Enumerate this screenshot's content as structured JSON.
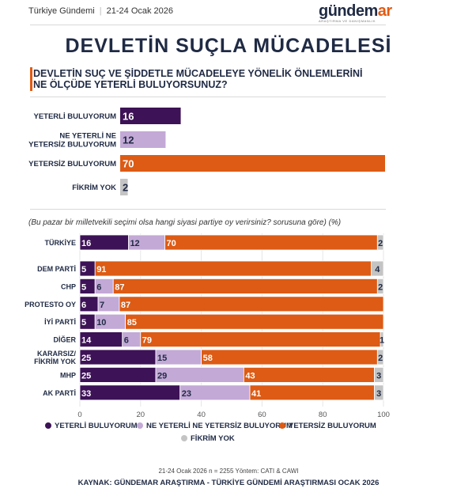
{
  "header": {
    "source_name": "Türkiye Gündemi",
    "date": "21-24 Ocak 2026"
  },
  "logo": {
    "main_left": "gündem",
    "main_accent": "ar",
    "tagline": "ARAŞTIRMA VE DANIŞMANLIK"
  },
  "title": "DEVLETİN SUÇLA MÜCADELESİ",
  "question": "DEVLETİN SUÇ VE ŞİDDETLE MÜCADELEYE YÖNELİK ÖNLEMLERİNİ NE ÖLÇÜDE YETERLİ BULUYORSUNUZ?",
  "note": "(Bu pazar bir milletvekili seçimi olsa hangi siyasi partiye oy verirsiniz? sorusuna göre) (%)",
  "colors": {
    "yeterli": "#3d1256",
    "ne_ne": "#c3a9d6",
    "yetersiz": "#dd5b14",
    "fikrim_yok": "#c4c4c4",
    "dark_text": "#1f2a44"
  },
  "chart_data": [
    {
      "type": "bar",
      "orientation": "horizontal",
      "categories": [
        "YETERLİ BULUYORUM",
        "NE YETERLİ NE YETERSİZ BULUYORUM",
        "YETERSİZ BULUYORUM",
        "FİKRİM YOK"
      ],
      "values": [
        16,
        12,
        70,
        2
      ],
      "colors": [
        "#3d1256",
        "#c3a9d6",
        "#dd5b14",
        "#c4c4c4"
      ]
    },
    {
      "type": "bar",
      "orientation": "horizontal",
      "stacked": true,
      "categories": [
        "TÜRKİYE",
        "DEM PARTİ",
        "CHP",
        "PROTESTO OY",
        "İYİ PARTİ",
        "DİĞER",
        "KARARSIZ/ FİKRİM YOK",
        "MHP",
        "AK PARTİ"
      ],
      "series": [
        {
          "name": "YETERLİ BULUYORUM",
          "color": "#3d1256",
          "values": [
            16,
            5,
            5,
            6,
            5,
            14,
            25,
            25,
            33
          ]
        },
        {
          "name": "NE YETERLİ NE YETERSİZ BULUYORUM",
          "color": "#c3a9d6",
          "values": [
            12,
            0,
            6,
            7,
            10,
            6,
            15,
            29,
            23
          ]
        },
        {
          "name": "YETERSİZ BULUYORUM",
          "color": "#dd5b14",
          "values": [
            70,
            91,
            87,
            87,
            85,
            79,
            58,
            43,
            41
          ]
        },
        {
          "name": "FİKRİM YOK",
          "color": "#c4c4c4",
          "values": [
            2,
            4,
            2,
            0,
            0,
            1,
            2,
            3,
            3
          ]
        }
      ],
      "xlim": [
        0,
        100
      ],
      "xticks": [
        0,
        20,
        40,
        60,
        80,
        100
      ],
      "legend_position": "bottom"
    }
  ],
  "footer": {
    "method": "21-24 Ocak 2026 n = 2255 Yöntem: CATI & CAWI",
    "source": "KAYNAK: GÜNDEMAR ARAŞTIRMA - TÜRKİYE GÜNDEMİ ARAŞTIRMASI OCAK 2026"
  }
}
